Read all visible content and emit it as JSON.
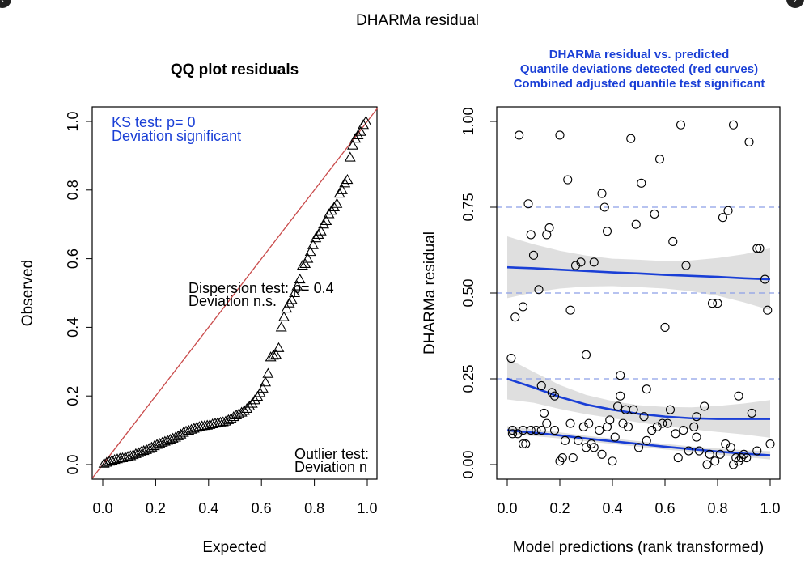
{
  "figure": {
    "title": "DHARMa residual",
    "nav": {
      "prev_icon": "chevron-left-icon",
      "next_icon": "chevron-right-icon"
    }
  },
  "colors": {
    "ink": "#000000",
    "blue": "#1a3fd6",
    "red": "#c94a4a",
    "band": "#d9d9d9",
    "dash": "#8c9fe6"
  },
  "chart_data": [
    {
      "type": "scatter",
      "title": "QQ plot residuals",
      "xlabel": "Expected",
      "ylabel": "Observed",
      "xlim": [
        0,
        1
      ],
      "ylim": [
        0,
        1
      ],
      "xticks": [
        "0.0",
        "0.2",
        "0.4",
        "0.6",
        "0.8",
        "1.0"
      ],
      "yticks": [
        "0.0",
        "0.2",
        "0.4",
        "0.6",
        "0.8",
        "1.0"
      ],
      "reference_line": {
        "from": [
          0,
          0
        ],
        "to": [
          1,
          1
        ]
      },
      "marker": "triangle",
      "points_expected": [
        0.005,
        0.015,
        0.025,
        0.035,
        0.045,
        0.055,
        0.065,
        0.075,
        0.085,
        0.095,
        0.105,
        0.115,
        0.125,
        0.135,
        0.145,
        0.155,
        0.165,
        0.175,
        0.185,
        0.195,
        0.205,
        0.215,
        0.225,
        0.235,
        0.245,
        0.255,
        0.265,
        0.275,
        0.285,
        0.295,
        0.305,
        0.315,
        0.325,
        0.335,
        0.345,
        0.355,
        0.365,
        0.375,
        0.385,
        0.395,
        0.405,
        0.415,
        0.425,
        0.435,
        0.445,
        0.455,
        0.465,
        0.475,
        0.485,
        0.495,
        0.505,
        0.515,
        0.525,
        0.535,
        0.545,
        0.555,
        0.565,
        0.575,
        0.585,
        0.595,
        0.605,
        0.615,
        0.625,
        0.635,
        0.645,
        0.655,
        0.665,
        0.675,
        0.685,
        0.695,
        0.705,
        0.715,
        0.725,
        0.735,
        0.745,
        0.755,
        0.765,
        0.775,
        0.785,
        0.795,
        0.805,
        0.815,
        0.825,
        0.835,
        0.845,
        0.855,
        0.865,
        0.875,
        0.885,
        0.895,
        0.905,
        0.915,
        0.925,
        0.935,
        0.945,
        0.955,
        0.965,
        0.975,
        0.985,
        0.995
      ],
      "points_observed": [
        0.003,
        0.006,
        0.009,
        0.012,
        0.014,
        0.016,
        0.018,
        0.019,
        0.021,
        0.023,
        0.025,
        0.028,
        0.031,
        0.034,
        0.037,
        0.04,
        0.043,
        0.046,
        0.05,
        0.054,
        0.058,
        0.061,
        0.064,
        0.067,
        0.07,
        0.073,
        0.076,
        0.079,
        0.083,
        0.088,
        0.093,
        0.097,
        0.099,
        0.102,
        0.105,
        0.108,
        0.11,
        0.112,
        0.113,
        0.114,
        0.116,
        0.118,
        0.12,
        0.122,
        0.123,
        0.124,
        0.126,
        0.13,
        0.134,
        0.139,
        0.144,
        0.148,
        0.152,
        0.157,
        0.163,
        0.17,
        0.178,
        0.188,
        0.198,
        0.209,
        0.222,
        0.24,
        0.265,
        0.313,
        0.318,
        0.32,
        0.34,
        0.4,
        0.43,
        0.455,
        0.47,
        0.48,
        0.5,
        0.52,
        0.54,
        0.58,
        0.585,
        0.6,
        0.62,
        0.64,
        0.66,
        0.67,
        0.68,
        0.7,
        0.71,
        0.73,
        0.74,
        0.75,
        0.76,
        0.79,
        0.8,
        0.82,
        0.83,
        0.895,
        0.93,
        0.95,
        0.96,
        0.97,
        0.99,
        1.0
      ],
      "annotations": {
        "ks_line1": "KS test: p= 0",
        "ks_line2": "Deviation  significant",
        "dispersion_line1": "Dispersion test: p= 0.4",
        "dispersion_line2": "Deviation  n.s.",
        "outlier_line1": "Outlier test:",
        "outlier_line2": "Deviation  n"
      }
    },
    {
      "type": "scatter",
      "title_lines": [
        "DHARMa residual vs. predicted",
        "Quantile deviations detected (red curves)",
        "Combined adjusted quantile test significant"
      ],
      "xlabel": "Model predictions (rank transformed)",
      "ylabel": "DHARMa residual",
      "xlim": [
        0,
        1
      ],
      "ylim": [
        0,
        1
      ],
      "xticks": [
        "0.0",
        "0.2",
        "0.4",
        "0.6",
        "0.8",
        "1.0"
      ],
      "yticks": [
        "0.00",
        "0.25",
        "0.50",
        "0.75",
        "1.00"
      ],
      "reference_quantiles": [
        0.25,
        0.5,
        0.75
      ],
      "marker": "circle",
      "points_x": [
        0.015,
        0.045,
        0.03,
        0.02,
        0.06,
        0.08,
        0.1,
        0.06,
        0.12,
        0.09,
        0.13,
        0.07,
        0.15,
        0.16,
        0.14,
        0.18,
        0.2,
        0.23,
        0.26,
        0.28,
        0.24,
        0.3,
        0.33,
        0.36,
        0.37,
        0.38,
        0.4,
        0.43,
        0.45,
        0.47,
        0.49,
        0.51,
        0.53,
        0.56,
        0.58,
        0.6,
        0.63,
        0.66,
        0.68,
        0.72,
        0.78,
        0.8,
        0.82,
        0.84,
        0.86,
        0.88,
        0.92,
        0.95,
        0.96,
        0.98,
        0.99,
        0.02,
        0.04,
        0.06,
        0.09,
        0.11,
        0.13,
        0.15,
        0.17,
        0.18,
        0.2,
        0.21,
        0.22,
        0.24,
        0.25,
        0.27,
        0.29,
        0.3,
        0.31,
        0.32,
        0.33,
        0.35,
        0.36,
        0.38,
        0.39,
        0.41,
        0.42,
        0.43,
        0.44,
        0.46,
        0.48,
        0.5,
        0.52,
        0.53,
        0.55,
        0.57,
        0.59,
        0.61,
        0.62,
        0.64,
        0.65,
        0.67,
        0.69,
        0.71,
        0.72,
        0.73,
        0.75,
        0.76,
        0.77,
        0.79,
        0.81,
        0.83,
        0.85,
        0.86,
        0.87,
        0.88,
        0.89,
        0.9,
        0.91,
        0.93,
        0.95,
        1.0
      ],
      "points_y": [
        0.31,
        0.96,
        0.43,
        0.1,
        0.46,
        0.76,
        0.61,
        0.1,
        0.51,
        0.67,
        0.23,
        0.06,
        0.67,
        0.69,
        0.15,
        0.2,
        0.96,
        0.83,
        0.58,
        0.59,
        0.45,
        0.32,
        0.59,
        0.79,
        0.75,
        0.68,
        0.01,
        0.26,
        0.16,
        0.95,
        0.7,
        0.82,
        0.22,
        0.73,
        0.89,
        0.4,
        0.65,
        0.99,
        0.58,
        0.14,
        0.47,
        0.47,
        0.72,
        0.74,
        0.99,
        0.2,
        0.94,
        0.63,
        0.63,
        0.54,
        0.45,
        0.09,
        0.09,
        0.06,
        0.1,
        0.1,
        0.1,
        0.12,
        0.21,
        0.1,
        0.01,
        0.02,
        0.07,
        0.12,
        0.02,
        0.07,
        0.11,
        0.05,
        0.12,
        0.06,
        0.05,
        0.1,
        0.03,
        0.11,
        0.13,
        0.08,
        0.17,
        0.2,
        0.12,
        0.11,
        0.16,
        0.05,
        0.14,
        0.07,
        0.1,
        0.11,
        0.12,
        0.12,
        0.16,
        0.09,
        0.02,
        0.1,
        0.04,
        0.11,
        0.08,
        0.04,
        0.17,
        0.0,
        0.03,
        0.01,
        0.03,
        0.06,
        0.05,
        0.0,
        0.02,
        0.01,
        0.02,
        0.03,
        0.02,
        0.15,
        0.04,
        0.06
      ],
      "quantile_curves": [
        {
          "quantile": 0.25,
          "x": [
            0.0,
            0.1,
            0.2,
            0.3,
            0.4,
            0.5,
            0.6,
            0.7,
            0.8,
            0.9,
            1.0
          ],
          "y": [
            0.1,
            0.093,
            0.085,
            0.076,
            0.068,
            0.06,
            0.052,
            0.045,
            0.038,
            0.032,
            0.027
          ],
          "band": [
            0.012,
            0.01,
            0.009,
            0.008,
            0.008,
            0.008,
            0.008,
            0.008,
            0.009,
            0.01,
            0.012
          ]
        },
        {
          "quantile": 0.5,
          "x": [
            0.0,
            0.1,
            0.2,
            0.3,
            0.4,
            0.5,
            0.6,
            0.7,
            0.8,
            0.9,
            1.0
          ],
          "y": [
            0.25,
            0.225,
            0.197,
            0.175,
            0.16,
            0.148,
            0.14,
            0.135,
            0.133,
            0.133,
            0.133
          ],
          "band": [
            0.06,
            0.045,
            0.035,
            0.028,
            0.025,
            0.025,
            0.028,
            0.032,
            0.038,
            0.045,
            0.055
          ]
        },
        {
          "quantile": 0.75,
          "x": [
            0.0,
            0.1,
            0.2,
            0.3,
            0.4,
            0.5,
            0.6,
            0.7,
            0.8,
            0.9,
            1.0
          ],
          "y": [
            0.575,
            0.572,
            0.568,
            0.564,
            0.56,
            0.557,
            0.553,
            0.55,
            0.547,
            0.543,
            0.54
          ],
          "band": [
            0.09,
            0.07,
            0.055,
            0.045,
            0.04,
            0.04,
            0.04,
            0.045,
            0.055,
            0.07,
            0.09
          ]
        }
      ]
    }
  ]
}
